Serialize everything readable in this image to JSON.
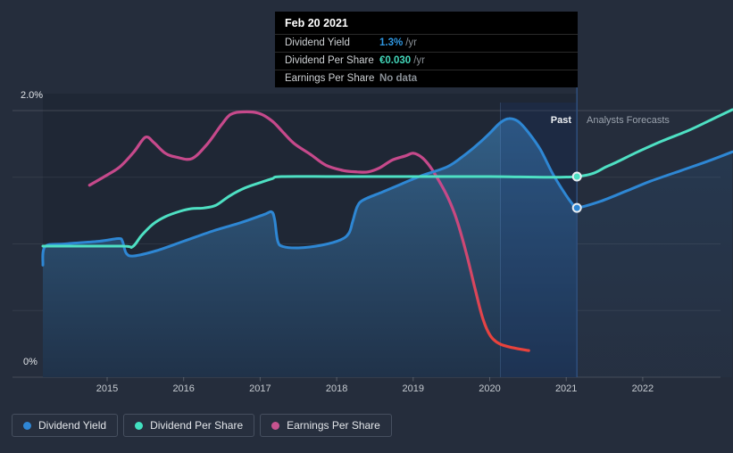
{
  "page": {
    "background": "#252d3c"
  },
  "tooltip": {
    "date": "Feb 20 2021",
    "rows": [
      {
        "label": "Dividend Yield",
        "value": "1.3%",
        "unit": "/yr",
        "value_color": "#2f96e0"
      },
      {
        "label": "Dividend Per Share",
        "value": "€0.030",
        "unit": "/yr",
        "value_color": "#43d7ba"
      },
      {
        "label": "Earnings Per Share",
        "value": "No data",
        "unit": "",
        "value_color": "#8a9097"
      }
    ]
  },
  "regions": {
    "past_label": "Past",
    "forecast_label": "Analysts Forecasts"
  },
  "y_axis": {
    "top_label": "2.0%",
    "bottom_label": "0%"
  },
  "x_axis": {
    "labels": [
      "2015",
      "2016",
      "2017",
      "2018",
      "2019",
      "2020",
      "2021",
      "2022"
    ]
  },
  "legend": {
    "items": [
      {
        "label": "Dividend Yield",
        "color": "#2f86d5"
      },
      {
        "label": "Dividend Per Share",
        "color": "#41e0c0"
      },
      {
        "label": "Earnings Per Share",
        "color": "#c6538f"
      }
    ]
  },
  "chart_data": {
    "type": "line",
    "title": "Dividend history and forecast",
    "x_axis_years": [
      2015,
      2016,
      2017,
      2018,
      2019,
      2020,
      2021,
      2022
    ],
    "y_axis_percent": {
      "min": 0,
      "max": 2.0,
      "gridlines": [
        0,
        0.5,
        1.0,
        1.5,
        2.0
      ],
      "labeled_ticks": [
        "0%",
        "2.0%"
      ]
    },
    "divider_year": 2021.14,
    "ttm_highlight_band": {
      "from_year": 2020.14,
      "to_year": 2021.14
    },
    "legend_position": "bottom-left",
    "series": [
      {
        "name": "Dividend Yield",
        "axis": "percent",
        "unit": "%",
        "color": "#2e87d4",
        "marker_at_divider": 1.27,
        "past": [
          [
            2014.16,
            0.84
          ],
          [
            2014.19,
            0.98
          ],
          [
            2014.45,
            1.0
          ],
          [
            2014.9,
            1.02
          ],
          [
            2015.15,
            1.04
          ],
          [
            2015.2,
            1.02
          ],
          [
            2015.25,
            0.93
          ],
          [
            2015.35,
            0.91
          ],
          [
            2015.65,
            0.95
          ],
          [
            2016.0,
            1.02
          ],
          [
            2016.4,
            1.1
          ],
          [
            2016.75,
            1.16
          ],
          [
            2017.05,
            1.22
          ],
          [
            2017.15,
            1.24
          ],
          [
            2017.19,
            1.18
          ],
          [
            2017.23,
            1.02
          ],
          [
            2017.3,
            0.98
          ],
          [
            2017.5,
            0.97
          ],
          [
            2017.8,
            0.99
          ],
          [
            2018.05,
            1.03
          ],
          [
            2018.16,
            1.08
          ],
          [
            2018.21,
            1.17
          ],
          [
            2018.27,
            1.28
          ],
          [
            2018.35,
            1.33
          ],
          [
            2018.6,
            1.39
          ],
          [
            2018.85,
            1.45
          ],
          [
            2019.1,
            1.51
          ],
          [
            2019.45,
            1.58
          ],
          [
            2019.68,
            1.67
          ],
          [
            2019.85,
            1.75
          ],
          [
            2020.0,
            1.83
          ],
          [
            2020.14,
            1.91
          ],
          [
            2020.25,
            1.94
          ],
          [
            2020.37,
            1.92
          ],
          [
            2020.5,
            1.84
          ],
          [
            2020.66,
            1.71
          ],
          [
            2020.82,
            1.53
          ],
          [
            2020.98,
            1.38
          ],
          [
            2021.08,
            1.3
          ],
          [
            2021.14,
            1.27
          ]
        ],
        "forecast": [
          [
            2021.14,
            1.27
          ],
          [
            2021.45,
            1.32
          ],
          [
            2021.8,
            1.4
          ],
          [
            2022.1,
            1.47
          ],
          [
            2022.5,
            1.55
          ],
          [
            2022.85,
            1.62
          ],
          [
            2023.17,
            1.69
          ]
        ]
      },
      {
        "name": "Dividend Per Share",
        "axis": "eur",
        "unit": "EUR",
        "color": "#4ee0c3",
        "marker_at_divider": 0.03,
        "past": [
          [
            2014.16,
            0.0196
          ],
          [
            2015.18,
            0.0196
          ],
          [
            2015.33,
            0.0195
          ],
          [
            2015.45,
            0.0212
          ],
          [
            2015.6,
            0.0229
          ],
          [
            2015.76,
            0.024
          ],
          [
            2015.95,
            0.0248
          ],
          [
            2016.1,
            0.0252
          ],
          [
            2016.26,
            0.0253
          ],
          [
            2016.42,
            0.0257
          ],
          [
            2016.6,
            0.0271
          ],
          [
            2016.8,
            0.0283
          ],
          [
            2017.0,
            0.0291
          ],
          [
            2017.16,
            0.0297
          ],
          [
            2017.28,
            0.03
          ],
          [
            2018.0,
            0.03
          ],
          [
            2019.0,
            0.03
          ],
          [
            2020.0,
            0.03
          ],
          [
            2021.14,
            0.03
          ]
        ],
        "forecast": [
          [
            2021.14,
            0.03
          ],
          [
            2021.55,
            0.0316
          ],
          [
            2021.9,
            0.0335
          ],
          [
            2022.25,
            0.0353
          ],
          [
            2022.6,
            0.0369
          ],
          [
            2022.95,
            0.0388
          ],
          [
            2023.17,
            0.04
          ]
        ]
      },
      {
        "name": "Earnings Per Share",
        "axis": "percent",
        "unit": "relative (no labeled scale)",
        "color": "#c6498b",
        "color_end": "#e8423c",
        "marker_at_divider": null,
        "past": [
          [
            2014.77,
            1.44
          ],
          [
            2014.98,
            1.51
          ],
          [
            2015.17,
            1.58
          ],
          [
            2015.35,
            1.69
          ],
          [
            2015.5,
            1.8
          ],
          [
            2015.61,
            1.76
          ],
          [
            2015.76,
            1.68
          ],
          [
            2015.91,
            1.65
          ],
          [
            2016.11,
            1.64
          ],
          [
            2016.31,
            1.75
          ],
          [
            2016.49,
            1.89
          ],
          [
            2016.61,
            1.97
          ],
          [
            2016.77,
            1.99
          ],
          [
            2016.98,
            1.98
          ],
          [
            2017.16,
            1.92
          ],
          [
            2017.31,
            1.83
          ],
          [
            2017.45,
            1.75
          ],
          [
            2017.66,
            1.67
          ],
          [
            2017.86,
            1.59
          ],
          [
            2018.09,
            1.55
          ],
          [
            2018.27,
            1.54
          ],
          [
            2018.41,
            1.54
          ],
          [
            2018.56,
            1.57
          ],
          [
            2018.73,
            1.63
          ],
          [
            2018.9,
            1.66
          ],
          [
            2019.0,
            1.68
          ],
          [
            2019.11,
            1.65
          ],
          [
            2019.22,
            1.58
          ],
          [
            2019.34,
            1.47
          ],
          [
            2019.46,
            1.34
          ],
          [
            2019.57,
            1.18
          ],
          [
            2019.69,
            0.94
          ],
          [
            2019.81,
            0.66
          ],
          [
            2019.91,
            0.44
          ],
          [
            2020.01,
            0.31
          ],
          [
            2020.13,
            0.25
          ],
          [
            2020.31,
            0.22
          ],
          [
            2020.51,
            0.2
          ]
        ],
        "forecast": []
      }
    ]
  }
}
